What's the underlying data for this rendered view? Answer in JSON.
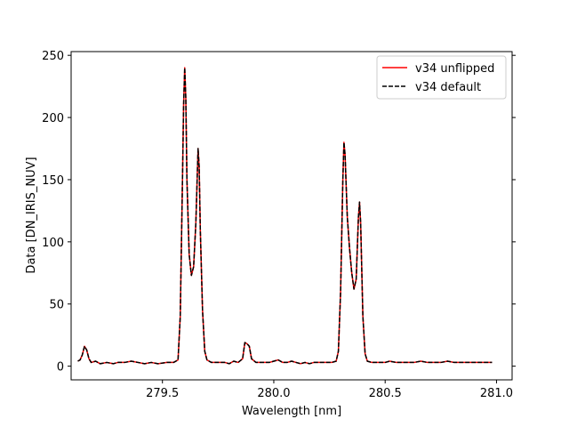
{
  "chart_data": {
    "type": "line",
    "title": "",
    "xlabel": "Wavelength [nm]",
    "ylabel": "Data [DN_IRIS_NUV]",
    "xlim": [
      279.09,
      281.07
    ],
    "ylim": [
      -11,
      253
    ],
    "xticks": [
      279.5,
      280.0,
      280.5,
      281.0
    ],
    "xtick_labels": [
      "279.5",
      "280.0",
      "280.5",
      "281.0"
    ],
    "yticks": [
      0,
      50,
      100,
      150,
      200,
      250
    ],
    "ytick_labels": [
      "0",
      "50",
      "100",
      "150",
      "200",
      "250"
    ],
    "grid": false,
    "legend_position": "top-right",
    "series": [
      {
        "name": "v34 unflipped",
        "color": "#ff0000",
        "dash": "solid",
        "points": [
          [
            279.12,
            4
          ],
          [
            279.13,
            5
          ],
          [
            279.14,
            9
          ],
          [
            279.15,
            16
          ],
          [
            279.16,
            13
          ],
          [
            279.17,
            6
          ],
          [
            279.18,
            3
          ],
          [
            279.2,
            4
          ],
          [
            279.22,
            2
          ],
          [
            279.25,
            3
          ],
          [
            279.28,
            2
          ],
          [
            279.3,
            3
          ],
          [
            279.33,
            3
          ],
          [
            279.36,
            4
          ],
          [
            279.39,
            3
          ],
          [
            279.42,
            2
          ],
          [
            279.45,
            3
          ],
          [
            279.48,
            2
          ],
          [
            279.52,
            3
          ],
          [
            279.55,
            3
          ],
          [
            279.57,
            5
          ],
          [
            279.58,
            40
          ],
          [
            279.59,
            150
          ],
          [
            279.595,
            210
          ],
          [
            279.6,
            240
          ],
          [
            279.605,
            215
          ],
          [
            279.61,
            150
          ],
          [
            279.62,
            90
          ],
          [
            279.63,
            73
          ],
          [
            279.64,
            80
          ],
          [
            279.65,
            115
          ],
          [
            279.66,
            175
          ],
          [
            279.665,
            160
          ],
          [
            279.67,
            110
          ],
          [
            279.68,
            45
          ],
          [
            279.69,
            12
          ],
          [
            279.7,
            5
          ],
          [
            279.72,
            3
          ],
          [
            279.75,
            3
          ],
          [
            279.78,
            3
          ],
          [
            279.8,
            2
          ],
          [
            279.82,
            4
          ],
          [
            279.84,
            3
          ],
          [
            279.86,
            6
          ],
          [
            279.87,
            19
          ],
          [
            279.88,
            18
          ],
          [
            279.89,
            16
          ],
          [
            279.9,
            6
          ],
          [
            279.92,
            3
          ],
          [
            279.95,
            3
          ],
          [
            279.98,
            3
          ],
          [
            280.0,
            4
          ],
          [
            280.02,
            5
          ],
          [
            280.04,
            3
          ],
          [
            280.06,
            3
          ],
          [
            280.08,
            4
          ],
          [
            280.1,
            3
          ],
          [
            280.12,
            2
          ],
          [
            280.14,
            3
          ],
          [
            280.16,
            2
          ],
          [
            280.18,
            3
          ],
          [
            280.2,
            3
          ],
          [
            280.22,
            3
          ],
          [
            280.24,
            3
          ],
          [
            280.26,
            3
          ],
          [
            280.28,
            4
          ],
          [
            280.29,
            12
          ],
          [
            280.3,
            60
          ],
          [
            280.31,
            150
          ],
          [
            280.315,
            180
          ],
          [
            280.32,
            170
          ],
          [
            280.33,
            120
          ],
          [
            280.34,
            95
          ],
          [
            280.35,
            75
          ],
          [
            280.36,
            62
          ],
          [
            280.37,
            70
          ],
          [
            280.38,
            120
          ],
          [
            280.385,
            132
          ],
          [
            280.39,
            115
          ],
          [
            280.4,
            40
          ],
          [
            280.41,
            10
          ],
          [
            280.42,
            4
          ],
          [
            280.44,
            3
          ],
          [
            280.46,
            3
          ],
          [
            280.48,
            3
          ],
          [
            280.5,
            3
          ],
          [
            280.52,
            4
          ],
          [
            280.55,
            3
          ],
          [
            280.58,
            3
          ],
          [
            280.6,
            3
          ],
          [
            280.63,
            3
          ],
          [
            280.66,
            4
          ],
          [
            280.69,
            3
          ],
          [
            280.72,
            3
          ],
          [
            280.75,
            3
          ],
          [
            280.78,
            4
          ],
          [
            280.81,
            3
          ],
          [
            280.84,
            3
          ],
          [
            280.87,
            3
          ],
          [
            280.9,
            3
          ],
          [
            280.93,
            3
          ],
          [
            280.96,
            3
          ],
          [
            280.98,
            3
          ]
        ]
      },
      {
        "name": "v34 default",
        "color": "#000000",
        "dash": "dashed",
        "points": [
          [
            279.12,
            4
          ],
          [
            279.13,
            5
          ],
          [
            279.14,
            9
          ],
          [
            279.15,
            16
          ],
          [
            279.16,
            13
          ],
          [
            279.17,
            6
          ],
          [
            279.18,
            3
          ],
          [
            279.2,
            4
          ],
          [
            279.22,
            2
          ],
          [
            279.25,
            3
          ],
          [
            279.28,
            2
          ],
          [
            279.3,
            3
          ],
          [
            279.33,
            3
          ],
          [
            279.36,
            4
          ],
          [
            279.39,
            3
          ],
          [
            279.42,
            2
          ],
          [
            279.45,
            3
          ],
          [
            279.48,
            2
          ],
          [
            279.52,
            3
          ],
          [
            279.55,
            3
          ],
          [
            279.57,
            5
          ],
          [
            279.58,
            40
          ],
          [
            279.59,
            150
          ],
          [
            279.595,
            210
          ],
          [
            279.6,
            240
          ],
          [
            279.605,
            215
          ],
          [
            279.61,
            150
          ],
          [
            279.62,
            90
          ],
          [
            279.63,
            73
          ],
          [
            279.64,
            80
          ],
          [
            279.65,
            115
          ],
          [
            279.66,
            175
          ],
          [
            279.665,
            160
          ],
          [
            279.67,
            110
          ],
          [
            279.68,
            45
          ],
          [
            279.69,
            12
          ],
          [
            279.7,
            5
          ],
          [
            279.72,
            3
          ],
          [
            279.75,
            3
          ],
          [
            279.78,
            3
          ],
          [
            279.8,
            2
          ],
          [
            279.82,
            4
          ],
          [
            279.84,
            3
          ],
          [
            279.86,
            6
          ],
          [
            279.87,
            19
          ],
          [
            279.88,
            18
          ],
          [
            279.89,
            16
          ],
          [
            279.9,
            6
          ],
          [
            279.92,
            3
          ],
          [
            279.95,
            3
          ],
          [
            279.98,
            3
          ],
          [
            280.0,
            4
          ],
          [
            280.02,
            5
          ],
          [
            280.04,
            3
          ],
          [
            280.06,
            3
          ],
          [
            280.08,
            4
          ],
          [
            280.1,
            3
          ],
          [
            280.12,
            2
          ],
          [
            280.14,
            3
          ],
          [
            280.16,
            2
          ],
          [
            280.18,
            3
          ],
          [
            280.2,
            3
          ],
          [
            280.22,
            3
          ],
          [
            280.24,
            3
          ],
          [
            280.26,
            3
          ],
          [
            280.28,
            4
          ],
          [
            280.29,
            12
          ],
          [
            280.3,
            60
          ],
          [
            280.31,
            150
          ],
          [
            280.315,
            180
          ],
          [
            280.32,
            170
          ],
          [
            280.33,
            120
          ],
          [
            280.34,
            95
          ],
          [
            280.35,
            75
          ],
          [
            280.36,
            62
          ],
          [
            280.37,
            70
          ],
          [
            280.38,
            120
          ],
          [
            280.385,
            132
          ],
          [
            280.39,
            115
          ],
          [
            280.4,
            40
          ],
          [
            280.41,
            10
          ],
          [
            280.42,
            4
          ],
          [
            280.44,
            3
          ],
          [
            280.46,
            3
          ],
          [
            280.48,
            3
          ],
          [
            280.5,
            3
          ],
          [
            280.52,
            4
          ],
          [
            280.55,
            3
          ],
          [
            280.58,
            3
          ],
          [
            280.6,
            3
          ],
          [
            280.63,
            3
          ],
          [
            280.66,
            4
          ],
          [
            280.69,
            3
          ],
          [
            280.72,
            3
          ],
          [
            280.75,
            3
          ],
          [
            280.78,
            4
          ],
          [
            280.81,
            3
          ],
          [
            280.84,
            3
          ],
          [
            280.87,
            3
          ],
          [
            280.9,
            3
          ],
          [
            280.93,
            3
          ],
          [
            280.96,
            3
          ],
          [
            280.98,
            3
          ]
        ]
      }
    ]
  }
}
